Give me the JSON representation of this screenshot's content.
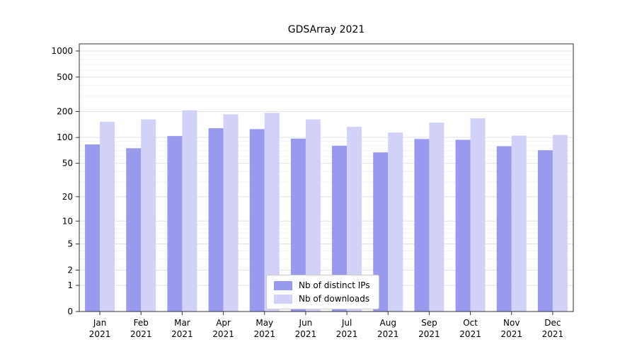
{
  "chart_data": {
    "type": "bar",
    "title": "GDSArray 2021",
    "categories": [
      "Jan",
      "Feb",
      "Mar",
      "Apr",
      "May",
      "Jun",
      "Jul",
      "Aug",
      "Sep",
      "Oct",
      "Nov",
      "Dec"
    ],
    "year": "2021",
    "series": [
      {
        "name": "Nb of distinct IPs",
        "color": "#9999ee",
        "values": [
          83,
          75,
          104,
          128,
          125,
          97,
          80,
          67,
          96,
          94,
          79,
          71
        ]
      },
      {
        "name": "Nb of downloads",
        "color": "#d2d2f8",
        "values": [
          152,
          162,
          207,
          186,
          193,
          162,
          133,
          114,
          149,
          167,
          105,
          107
        ]
      }
    ],
    "yscale": "log1p",
    "yticks": [
      0,
      1,
      2,
      5,
      10,
      20,
      50,
      100,
      200,
      500,
      1000
    ],
    "ylim": [
      0,
      1200
    ],
    "grid": true,
    "legend_position": "lower center"
  }
}
